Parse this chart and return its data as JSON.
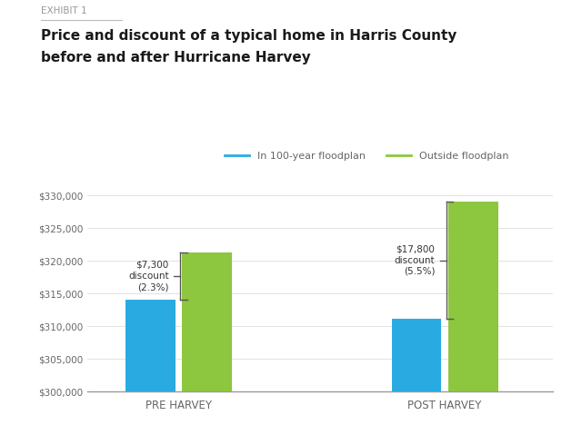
{
  "exhibit_label": "EXHIBIT 1",
  "title_line1": "Price and discount of a typical home in Harris County",
  "title_line2": "before and after Hurricane Harvey",
  "groups": [
    "PRE HARVEY",
    "POST HARVEY"
  ],
  "blue_values": [
    314000,
    311200
  ],
  "green_values": [
    321300,
    329000
  ],
  "blue_color": "#29ABE2",
  "green_color": "#8DC63F",
  "ylim_min": 300000,
  "ylim_max": 332000,
  "yticks": [
    300000,
    305000,
    310000,
    315000,
    320000,
    325000,
    330000
  ],
  "legend_blue_label": "In 100-year floodplan",
  "legend_green_label": "Outside floodplan",
  "annotation1_text": "$7,300\ndiscount\n(2.3%)",
  "annotation2_text": "$17,800\ndiscount\n(5.5%)",
  "background_color": "#ffffff",
  "axis_label_color": "#666666",
  "title_color": "#1a1a1a",
  "exhibit_color": "#999999"
}
